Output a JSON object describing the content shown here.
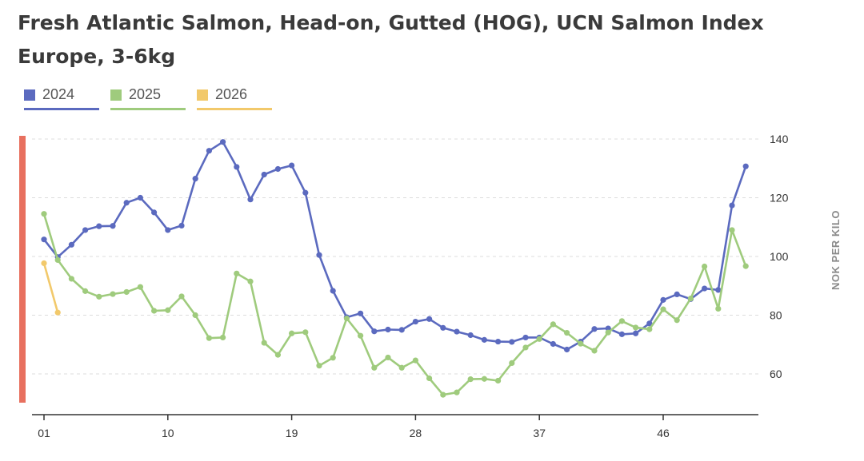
{
  "title": "Fresh Atlantic Salmon, Head-on, Gutted (HOG), UCN Salmon Index Europe, 3-6kg",
  "legend": [
    {
      "label": "2024",
      "color": "#5b6abf"
    },
    {
      "label": "2025",
      "color": "#9fcb7d"
    },
    {
      "label": "2026",
      "color": "#f2c96b"
    }
  ],
  "chart_data": {
    "type": "line",
    "title": "Fresh Atlantic Salmon, Head-on, Gutted (HOG), UCN Salmon Index Europe, 3-6kg",
    "xlabel": "",
    "ylabel": "NOK PER KILO",
    "x_ticks": [
      "01",
      "10",
      "19",
      "28",
      "37",
      "46"
    ],
    "x_range": [
      1,
      53
    ],
    "ylim": [
      50,
      140
    ],
    "y_ticks": [
      60,
      80,
      100,
      120,
      140
    ],
    "grid": "horizontal dashed",
    "legend_position": "top-left",
    "series": [
      {
        "name": "2024",
        "color": "#5b6abf",
        "x": [
          1,
          2,
          3,
          4,
          5,
          6,
          7,
          8,
          9,
          10,
          11,
          12,
          13,
          14,
          15,
          16,
          17,
          18,
          19,
          20,
          21,
          22,
          23,
          24,
          25,
          26,
          27,
          28,
          29,
          30,
          31,
          32,
          33,
          34,
          35,
          36,
          37,
          38,
          39,
          40,
          41,
          42,
          43,
          44,
          45,
          46,
          47,
          48,
          49,
          50,
          51,
          52
        ],
        "values": [
          105.8,
          99.8,
          104,
          109,
          110.3,
          110.4,
          118.3,
          120,
          115,
          109,
          110.5,
          126.5,
          136,
          139,
          130.5,
          119.4,
          127.9,
          129.8,
          131,
          121.7,
          100.5,
          88.3,
          79.3,
          80.6,
          74.5,
          75.1,
          75,
          77.8,
          78.7,
          75.7,
          74.4,
          73.2,
          71.6,
          71,
          70.9,
          72.4,
          72.4,
          70.2,
          68.3,
          71,
          75.3,
          75.5,
          73.5,
          73.8,
          77.2,
          85.2,
          87.1,
          85.5,
          89.1,
          88.6,
          117.4,
          130.7
        ]
      },
      {
        "name": "2025",
        "color": "#9fcb7d",
        "x": [
          1,
          2,
          3,
          4,
          5,
          6,
          7,
          8,
          9,
          10,
          11,
          12,
          13,
          14,
          15,
          16,
          17,
          18,
          19,
          20,
          21,
          22,
          23,
          24,
          25,
          26,
          27,
          28,
          29,
          30,
          31,
          32,
          33,
          34,
          35,
          36,
          37,
          38,
          39,
          40,
          41,
          42,
          43,
          44,
          45,
          46,
          47,
          48,
          49,
          50,
          51,
          52
        ],
        "values": [
          114.5,
          98.8,
          92.4,
          88.2,
          86.3,
          87.2,
          87.9,
          89.6,
          81.5,
          81.7,
          86.4,
          80,
          72.2,
          72.4,
          94.2,
          91.5,
          70.6,
          66.5,
          73.8,
          74.2,
          62.8,
          65.5,
          78.9,
          73,
          62.1,
          65.6,
          62.1,
          64.6,
          58.5,
          52.9,
          53.7,
          58.2,
          58.3,
          57.7,
          63.7,
          69,
          71.9,
          76.9,
          74,
          70.3,
          67.9,
          74.1,
          78,
          75.8,
          75.2,
          82,
          78.3,
          85.7,
          96.6,
          82.2,
          109,
          96.7
        ]
      },
      {
        "name": "2026",
        "color": "#f2c96b",
        "x": [
          1,
          2
        ],
        "values": [
          97.7,
          80.9
        ]
      }
    ]
  }
}
